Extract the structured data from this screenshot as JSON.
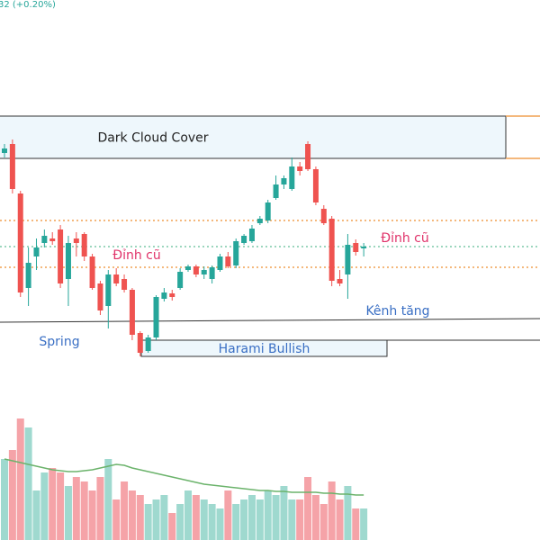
{
  "chart_data": {
    "type": "candlestick",
    "header": "32 (+0.20%)",
    "ylim": [
      0,
      600
    ],
    "up_color": "#26a69a",
    "down_color": "#ef5350",
    "open": [
      430,
      440,
      385,
      280,
      315,
      330,
      335,
      345,
      290,
      335,
      340,
      315,
      285,
      260,
      295,
      290,
      278,
      230,
      210,
      225,
      268,
      274,
      280,
      300,
      304,
      295,
      290,
      300,
      315,
      305,
      330,
      332,
      352,
      355,
      380,
      395,
      390,
      415,
      440,
      412,
      368,
      357,
      290,
      295,
      330,
      324
    ],
    "high": [
      440,
      445,
      388,
      325,
      335,
      345,
      342,
      350,
      338,
      342,
      342,
      318,
      288,
      300,
      302,
      295,
      280,
      232,
      228,
      272,
      280,
      278,
      302,
      306,
      306,
      304,
      305,
      318,
      320,
      335,
      340,
      350,
      360,
      378,
      405,
      405,
      425,
      420,
      443,
      415,
      372,
      360,
      300,
      340,
      334,
      330
    ],
    "low": [
      425,
      385,
      270,
      260,
      300,
      325,
      328,
      280,
      260,
      315,
      310,
      278,
      250,
      235,
      282,
      275,
      222,
      204,
      208,
      222,
      265,
      266,
      278,
      298,
      292,
      290,
      285,
      298,
      302,
      302,
      328,
      330,
      350,
      352,
      378,
      390,
      388,
      405,
      410,
      372,
      350,
      282,
      282,
      268,
      316,
      315
    ],
    "close": [
      435,
      390,
      275,
      308,
      325,
      338,
      332,
      285,
      330,
      330,
      315,
      280,
      255,
      295,
      285,
      278,
      228,
      208,
      225,
      270,
      275,
      270,
      298,
      304,
      295,
      300,
      303,
      315,
      304,
      332,
      338,
      346,
      357,
      375,
      395,
      402,
      415,
      410,
      412,
      375,
      352,
      288,
      285,
      328,
      320,
      326
    ],
    "volume": {
      "ylim": [
        0,
        600
      ],
      "up_color": "#9fd9cf",
      "down_color": "#f5a3a8",
      "values": [
        90,
        100,
        135,
        125,
        55,
        75,
        80,
        75,
        60,
        70,
        65,
        55,
        70,
        90,
        45,
        65,
        55,
        50,
        40,
        45,
        50,
        30,
        40,
        55,
        50,
        45,
        40,
        35,
        55,
        40,
        45,
        50,
        45,
        55,
        50,
        60,
        45,
        45,
        70,
        50,
        40,
        65,
        45,
        60,
        35,
        35
      ]
    },
    "ma": {
      "color": "#6bb36b",
      "values": [
        90,
        88,
        86,
        84,
        82,
        80,
        78,
        77,
        76,
        76,
        77,
        78,
        80,
        82,
        84,
        83,
        80,
        78,
        76,
        74,
        72,
        70,
        68,
        66,
        64,
        62,
        61,
        60,
        59,
        58,
        57,
        56,
        55,
        55,
        54,
        54,
        53,
        53,
        53,
        53,
        52,
        52,
        51,
        51,
        50,
        50
      ]
    },
    "levels": [
      {
        "value": 355,
        "color": "#f0a050",
        "style": "dotted"
      },
      {
        "value": 303,
        "color": "#f0a050",
        "style": "dotted"
      },
      {
        "value": 326,
        "color": "#7cc8a8",
        "style": "dotted"
      }
    ],
    "channel": {
      "start": 242,
      "end": 246,
      "color": "#333333"
    },
    "zones": [
      {
        "label": "Dark Cloud Cover",
        "top": 471,
        "bottom": 424,
        "fill": "#eef7fc",
        "text_color": "#222222",
        "edge_color": "#f0a050"
      },
      {
        "label": "Harami Bullish",
        "top": 222,
        "bottom": 204,
        "fill": "#eef7fc",
        "text_color": "#3a6fc4"
      }
    ],
    "annotations": [
      {
        "text": "Đỉnh cũ",
        "color": "#e0336a"
      },
      {
        "text": "Đỉnh cũ",
        "color": "#e0336a"
      },
      {
        "text": "Kênh tăng",
        "color": "#3a6fc4"
      },
      {
        "text": "Spring",
        "color": "#3a6fc4"
      }
    ]
  }
}
